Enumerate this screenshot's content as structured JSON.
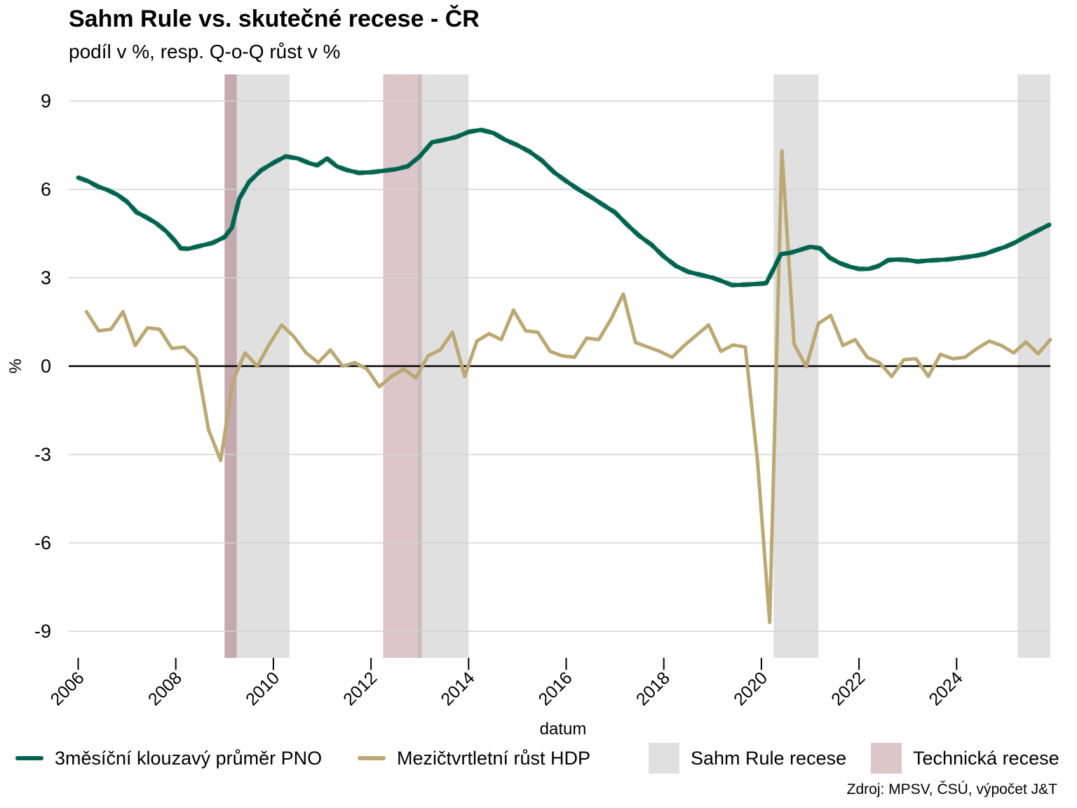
{
  "chart_data": {
    "type": "line",
    "title": "Sahm Rule vs. skutečné recese - ČR",
    "subtitle": "podíl v %, resp. Q-o-Q růst v %",
    "xlabel": "datum",
    "ylabel": "%",
    "xlim": [
      2006.0,
      2026.0
    ],
    "ylim": [
      -9.9,
      9.9
    ],
    "x_ticks": [
      2006,
      2008,
      2010,
      2012,
      2014,
      2016,
      2018,
      2020,
      2022,
      2024
    ],
    "x_tick_labels": [
      "2006",
      "2008",
      "2010",
      "2012",
      "2014",
      "2016",
      "2018",
      "2020",
      "2022",
      "2024"
    ],
    "y_ticks": [
      9,
      6,
      3,
      0,
      -3,
      -6,
      -9
    ],
    "y_tick_labels": [
      "9",
      "6",
      "3",
      "0",
      "-3",
      "-6",
      "-9"
    ],
    "source": "Zdroj: MPSV, ČSÚ, výpočet J&T",
    "bands": {
      "sahm": [
        [
          2009.25,
          2010.33
        ],
        [
          2013.0,
          2014.0
        ],
        [
          2020.25,
          2021.17
        ],
        [
          2025.25,
          2025.92
        ]
      ],
      "technical": [
        [
          2009.0,
          2009.25
        ],
        [
          2012.25,
          2013.0
        ]
      ]
    },
    "series": [
      {
        "name": "3měsíční klouzavý průměr PNO",
        "color": "#00634f",
        "x": [
          2006.0,
          2006.2,
          2006.4,
          2006.6,
          2006.8,
          2007.0,
          2007.2,
          2007.4,
          2007.6,
          2007.8,
          2008.0,
          2008.1,
          2008.25,
          2008.5,
          2008.75,
          2009.0,
          2009.15,
          2009.3,
          2009.5,
          2009.75,
          2010.0,
          2010.25,
          2010.5,
          2010.75,
          2010.9,
          2011.1,
          2011.3,
          2011.5,
          2011.75,
          2012.0,
          2012.2,
          2012.5,
          2012.75,
          2013.0,
          2013.25,
          2013.5,
          2013.75,
          2014.0,
          2014.25,
          2014.5,
          2014.75,
          2015.0,
          2015.25,
          2015.5,
          2015.75,
          2016.0,
          2016.25,
          2016.5,
          2016.75,
          2017.0,
          2017.25,
          2017.5,
          2017.75,
          2018.0,
          2018.25,
          2018.5,
          2018.75,
          2019.0,
          2019.2,
          2019.4,
          2019.6,
          2019.8,
          2020.0,
          2020.1,
          2020.25,
          2020.4,
          2020.6,
          2020.8,
          2021.0,
          2021.2,
          2021.4,
          2021.6,
          2021.8,
          2022.0,
          2022.2,
          2022.4,
          2022.6,
          2022.8,
          2023.0,
          2023.2,
          2023.4,
          2023.6,
          2023.8,
          2024.0,
          2024.2,
          2024.4,
          2024.6,
          2024.8,
          2025.0,
          2025.2,
          2025.4,
          2025.6,
          2025.9
        ],
        "values": [
          6.4,
          6.28,
          6.1,
          5.98,
          5.82,
          5.58,
          5.22,
          5.05,
          4.85,
          4.58,
          4.22,
          4.0,
          3.98,
          4.08,
          4.18,
          4.38,
          4.7,
          5.68,
          6.25,
          6.65,
          6.9,
          7.12,
          7.05,
          6.88,
          6.82,
          7.05,
          6.78,
          6.66,
          6.56,
          6.58,
          6.62,
          6.68,
          6.78,
          7.12,
          7.6,
          7.68,
          7.78,
          7.95,
          8.02,
          7.92,
          7.68,
          7.5,
          7.28,
          6.98,
          6.58,
          6.28,
          6.0,
          5.75,
          5.48,
          5.22,
          4.8,
          4.42,
          4.12,
          3.72,
          3.4,
          3.2,
          3.1,
          3.0,
          2.88,
          2.75,
          2.76,
          2.78,
          2.8,
          2.82,
          3.3,
          3.8,
          3.85,
          3.95,
          4.05,
          4.0,
          3.68,
          3.5,
          3.38,
          3.3,
          3.3,
          3.4,
          3.6,
          3.62,
          3.6,
          3.55,
          3.58,
          3.6,
          3.62,
          3.66,
          3.7,
          3.75,
          3.82,
          3.94,
          4.05,
          4.2,
          4.38,
          4.55,
          4.8
        ]
      },
      {
        "name": "Mezičtvrtletní růst HDP",
        "color": "#bba873",
        "x": [
          2006.17,
          2006.42,
          2006.67,
          2006.92,
          2007.17,
          2007.42,
          2007.67,
          2007.92,
          2008.17,
          2008.42,
          2008.67,
          2008.92,
          2009.17,
          2009.42,
          2009.67,
          2009.92,
          2010.17,
          2010.42,
          2010.67,
          2010.92,
          2011.17,
          2011.42,
          2011.67,
          2011.92,
          2012.17,
          2012.42,
          2012.67,
          2012.92,
          2013.17,
          2013.42,
          2013.67,
          2013.92,
          2014.17,
          2014.42,
          2014.67,
          2014.92,
          2015.17,
          2015.42,
          2015.67,
          2015.92,
          2016.17,
          2016.42,
          2016.67,
          2016.92,
          2017.17,
          2017.42,
          2017.67,
          2017.92,
          2018.17,
          2018.42,
          2018.67,
          2018.92,
          2019.17,
          2019.42,
          2019.67,
          2019.92,
          2020.17,
          2020.42,
          2020.67,
          2020.92,
          2021.17,
          2021.42,
          2021.67,
          2021.92,
          2022.17,
          2022.42,
          2022.67,
          2022.92,
          2023.17,
          2023.42,
          2023.67,
          2023.92,
          2024.17,
          2024.42,
          2024.67,
          2024.92,
          2025.17,
          2025.42,
          2025.67,
          2025.92
        ],
        "values": [
          1.85,
          1.2,
          1.25,
          1.85,
          0.7,
          1.3,
          1.25,
          0.6,
          0.65,
          0.25,
          -2.15,
          -3.2,
          -0.5,
          0.45,
          0.0,
          0.75,
          1.4,
          1.0,
          0.45,
          0.12,
          0.55,
          0.0,
          0.12,
          -0.1,
          -0.7,
          -0.35,
          -0.1,
          -0.4,
          0.35,
          0.55,
          1.15,
          -0.35,
          0.85,
          1.1,
          0.9,
          1.9,
          1.2,
          1.15,
          0.5,
          0.35,
          0.3,
          0.95,
          0.9,
          1.6,
          2.45,
          0.8,
          0.65,
          0.5,
          0.3,
          0.7,
          1.05,
          1.4,
          0.5,
          0.72,
          0.65,
          -3.2,
          -8.7,
          7.3,
          0.75,
          -0.02,
          1.45,
          1.72,
          0.7,
          0.9,
          0.3,
          0.12,
          -0.35,
          0.22,
          0.25,
          -0.35,
          0.4,
          0.25,
          0.3,
          0.6,
          0.85,
          0.7,
          0.45,
          0.82,
          0.42,
          0.9
        ]
      }
    ],
    "legend": {
      "pno": "3měsíční klouzavý průměr PNO",
      "hdp": "Mezičtvrtletní růst HDP",
      "sahm": "Sahm Rule recese",
      "technical": "Technická recese"
    },
    "colors": {
      "pno": "#00634f",
      "hdp": "#bba873",
      "sahm": "#dfe0df",
      "technical": "#dcc6c9",
      "technical_overlap": "#c4a9af",
      "grid": "#d3d3d3"
    }
  }
}
